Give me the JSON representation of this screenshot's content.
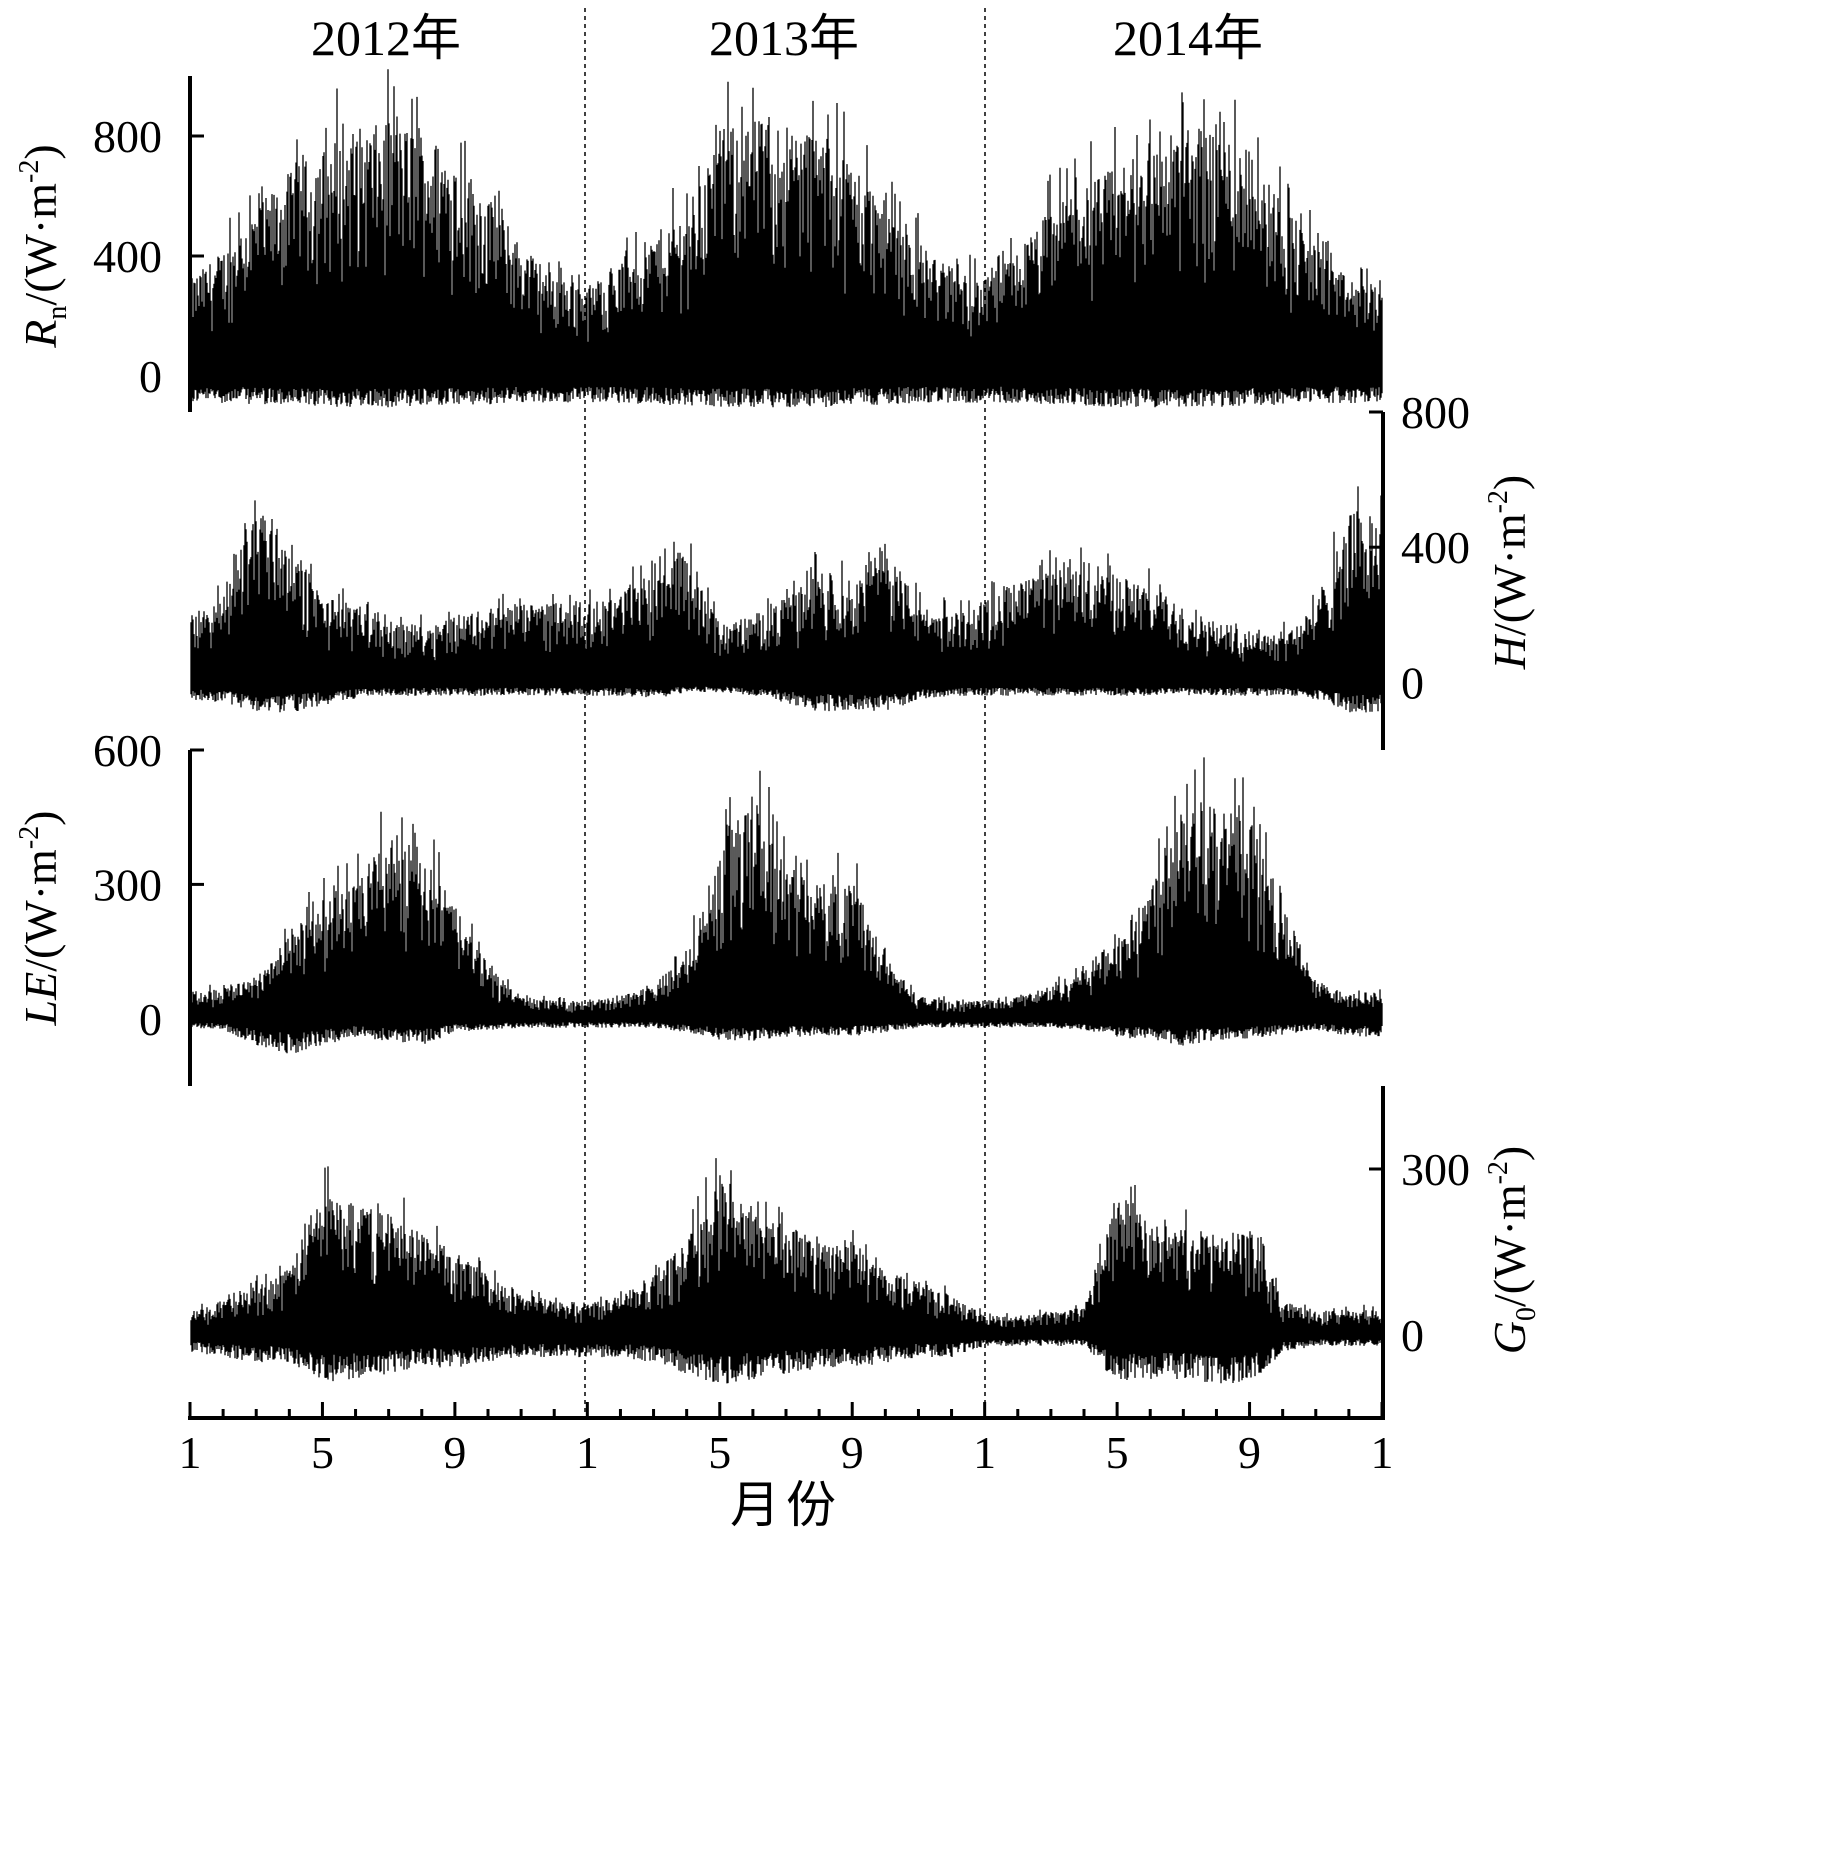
{
  "chart_data": {
    "type": "line",
    "x_tick_labels": [
      "1",
      "5",
      "9",
      "1",
      "5",
      "9",
      "1",
      "5",
      "9",
      "1"
    ],
    "xlabel": "月份",
    "year_labels": [
      "2012年",
      "2013年",
      "2014年"
    ],
    "panels": [
      {
        "id": "rn",
        "ylabel": "Rn/(W·m-2)",
        "ylabel_parts": {
          "sym": "R",
          "sub": "n",
          "unit": "/(W·m",
          "sup": "-2",
          "close": ")"
        },
        "axis_side": "left",
        "ylim": [
          -120,
          1000
        ],
        "yticks": [
          0,
          400,
          800
        ],
        "ytick_labels": [
          "0",
          "400",
          "800"
        ],
        "envelope_monthly": {
          "months": [
            "2012-01",
            "2012-02",
            "2012-03",
            "2012-04",
            "2012-05",
            "2012-06",
            "2012-07",
            "2012-08",
            "2012-09",
            "2012-10",
            "2012-11",
            "2012-12",
            "2013-01",
            "2013-02",
            "2013-03",
            "2013-04",
            "2013-05",
            "2013-06",
            "2013-07",
            "2013-08",
            "2013-09",
            "2013-10",
            "2013-11",
            "2013-12",
            "2014-01",
            "2014-02",
            "2014-03",
            "2014-04",
            "2014-05",
            "2014-06",
            "2014-07",
            "2014-08",
            "2014-09",
            "2014-10",
            "2014-11",
            "2014-12"
          ],
          "daily_max": [
            320,
            420,
            560,
            680,
            760,
            830,
            840,
            820,
            740,
            600,
            440,
            340,
            300,
            380,
            470,
            560,
            820,
            860,
            850,
            820,
            720,
            580,
            450,
            350,
            320,
            420,
            560,
            640,
            700,
            760,
            840,
            840,
            720,
            600,
            430,
            320
          ],
          "night_min": [
            -90,
            -90,
            -95,
            -100,
            -105,
            -105,
            -105,
            -105,
            -100,
            -95,
            -90,
            -90,
            -90,
            -90,
            -95,
            -100,
            -105,
            -105,
            -105,
            -105,
            -100,
            -95,
            -90,
            -90,
            -90,
            -90,
            -95,
            -100,
            -105,
            -105,
            -105,
            -105,
            -100,
            -95,
            -90,
            -90
          ]
        }
      },
      {
        "id": "h",
        "ylabel": "H/(W·m-2)",
        "ylabel_parts": {
          "sym": "H",
          "sub": "",
          "unit": "/(W·m",
          "sup": "-2",
          "close": ")"
        },
        "axis_side": "right",
        "ylim": [
          -200,
          800
        ],
        "yticks": [
          0,
          400,
          800
        ],
        "ytick_labels": [
          "0",
          "400",
          "800"
        ],
        "envelope_monthly": {
          "months": [
            "2012-01",
            "2012-02",
            "2012-03",
            "2012-04",
            "2012-05",
            "2012-06",
            "2012-07",
            "2012-08",
            "2012-09",
            "2012-10",
            "2012-11",
            "2012-12",
            "2013-01",
            "2013-02",
            "2013-03",
            "2013-04",
            "2013-05",
            "2013-06",
            "2013-07",
            "2013-08",
            "2013-09",
            "2013-10",
            "2013-11",
            "2013-12",
            "2014-01",
            "2014-02",
            "2014-03",
            "2014-04",
            "2014-05",
            "2014-06",
            "2014-07",
            "2014-08",
            "2014-09",
            "2014-10",
            "2014-11",
            "2014-12"
          ],
          "daily_max": [
            200,
            250,
            560,
            420,
            260,
            220,
            180,
            170,
            200,
            220,
            230,
            240,
            230,
            270,
            330,
            400,
            170,
            200,
            250,
            330,
            300,
            420,
            230,
            200,
            240,
            300,
            330,
            330,
            320,
            290,
            220,
            180,
            160,
            150,
            220,
            500
          ],
          "night_min": [
            -50,
            -60,
            -90,
            -90,
            -70,
            -50,
            -40,
            -40,
            -40,
            -40,
            -40,
            -40,
            -40,
            -40,
            -50,
            -30,
            -30,
            -40,
            -60,
            -90,
            -80,
            -90,
            -50,
            -40,
            -40,
            -40,
            -40,
            -40,
            -40,
            -40,
            -40,
            -40,
            -40,
            -40,
            -50,
            -90
          ]
        }
      },
      {
        "id": "le",
        "ylabel": "LE/(W·m-2)",
        "ylabel_parts": {
          "sym": "LE",
          "sub": "",
          "unit": "/(W·m",
          "sup": "-2",
          "close": ")"
        },
        "axis_side": "left",
        "ylim": [
          -150,
          600
        ],
        "yticks": [
          0,
          300,
          600
        ],
        "ytick_labels": [
          "0",
          "300",
          "600"
        ],
        "envelope_monthly": {
          "months": [
            "2012-01",
            "2012-02",
            "2012-03",
            "2012-04",
            "2012-05",
            "2012-06",
            "2012-07",
            "2012-08",
            "2012-09",
            "2012-10",
            "2012-11",
            "2012-12",
            "2013-01",
            "2013-02",
            "2013-03",
            "2013-04",
            "2013-05",
            "2013-06",
            "2013-07",
            "2013-08",
            "2013-09",
            "2013-10",
            "2013-11",
            "2013-12",
            "2014-01",
            "2014-02",
            "2014-03",
            "2014-04",
            "2014-05",
            "2014-06",
            "2014-07",
            "2014-08",
            "2014-09",
            "2014-10",
            "2014-11",
            "2014-12"
          ],
          "daily_max": [
            60,
            70,
            100,
            180,
            280,
            300,
            420,
            380,
            250,
            120,
            50,
            40,
            40,
            50,
            80,
            140,
            380,
            500,
            350,
            300,
            320,
            130,
            50,
            40,
            40,
            50,
            70,
            120,
            180,
            300,
            520,
            480,
            440,
            260,
            80,
            60
          ],
          "night_min": [
            -20,
            -25,
            -60,
            -80,
            -60,
            -40,
            -50,
            -60,
            -30,
            -25,
            -20,
            -20,
            -20,
            -20,
            -20,
            -30,
            -50,
            -50,
            -40,
            -40,
            -40,
            -30,
            -20,
            -20,
            -20,
            -20,
            -20,
            -25,
            -40,
            -50,
            -60,
            -50,
            -45,
            -35,
            -25,
            -40
          ]
        }
      },
      {
        "id": "g0",
        "ylabel": "G0/(W·m-2)",
        "ylabel_parts": {
          "sym": "G",
          "sub": "0",
          "unit": "/(W·m",
          "sup": "-2",
          "close": ")"
        },
        "axis_side": "right",
        "ylim": [
          -150,
          450
        ],
        "yticks": [
          0,
          300
        ],
        "ytick_labels": [
          "0",
          "300"
        ],
        "envelope_monthly": {
          "months": [
            "2012-01",
            "2012-02",
            "2012-03",
            "2012-04",
            "2012-05",
            "2012-06",
            "2012-07",
            "2012-08",
            "2012-09",
            "2012-10",
            "2012-11",
            "2012-12",
            "2013-01",
            "2013-02",
            "2013-03",
            "2013-04",
            "2013-05",
            "2013-06",
            "2013-07",
            "2013-08",
            "2013-09",
            "2013-10",
            "2013-11",
            "2013-12",
            "2014-01",
            "2014-02",
            "2014-03",
            "2014-04",
            "2014-05",
            "2014-06",
            "2014-07",
            "2014-08",
            "2014-09",
            "2014-10",
            "2014-11",
            "2014-12"
          ],
          "daily_max": [
            40,
            60,
            90,
            120,
            260,
            240,
            220,
            190,
            150,
            110,
            80,
            60,
            60,
            70,
            110,
            170,
            280,
            240,
            200,
            170,
            170,
            120,
            100,
            70,
            35,
            35,
            40,
            50,
            260,
            200,
            190,
            180,
            190,
            60,
            45,
            45
          ],
          "night_min": [
            -30,
            -40,
            -50,
            -50,
            -90,
            -80,
            -70,
            -60,
            -60,
            -50,
            -40,
            -40,
            -40,
            -40,
            -50,
            -70,
            -90,
            -80,
            -70,
            -60,
            -60,
            -50,
            -40,
            -40,
            -20,
            -20,
            -20,
            -20,
            -90,
            -80,
            -80,
            -90,
            -90,
            -30,
            -20,
            -20
          ]
        }
      }
    ]
  }
}
